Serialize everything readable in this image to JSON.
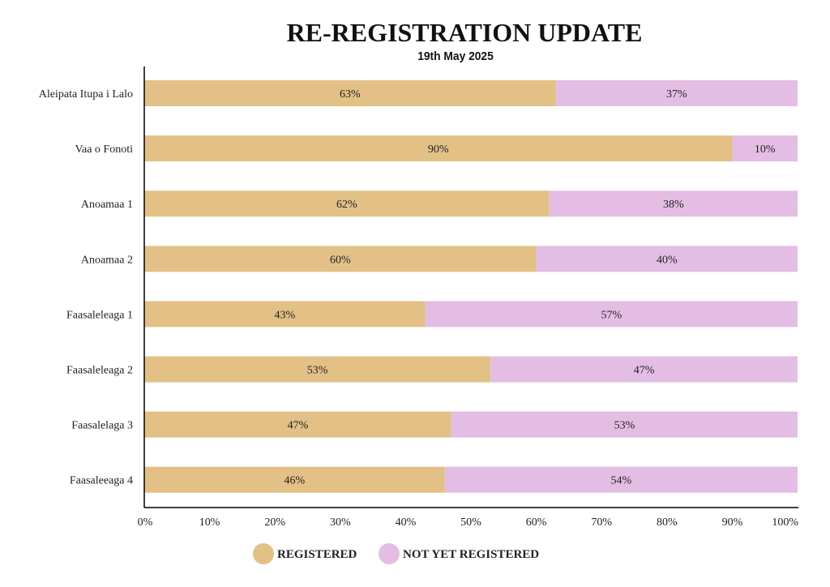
{
  "chart_data": {
    "type": "bar",
    "orientation": "horizontal",
    "stacked": true,
    "title": "RE-REGISTRATION UPDATE",
    "subtitle": "19th May 2025",
    "categories": [
      "Aleipata Itupa i Lalo",
      "Vaa o Fonoti",
      "Anoamaa 1",
      "Anoamaa 2",
      "Faasaleleaga 1",
      "Faasaleleaga 2",
      "Faasalelaga 3",
      "Faasaleeaga 4"
    ],
    "series": [
      {
        "name": "REGISTERED",
        "color": "#e2c086",
        "values": [
          63,
          90,
          62,
          60,
          43,
          53,
          47,
          46
        ],
        "labels": [
          "63%",
          "90%",
          "62%",
          "60%",
          "43%",
          "53%",
          "47%",
          "46%"
        ]
      },
      {
        "name": "NOT YET REGISTERED",
        "color": "#e3bde4",
        "values": [
          37,
          10,
          38,
          40,
          57,
          47,
          53,
          54
        ],
        "labels": [
          "37%",
          "10%",
          "38%",
          "40%",
          "57%",
          "47%",
          "53%",
          "54%"
        ]
      }
    ],
    "xlim": [
      0,
      100
    ],
    "xticks": [
      "0%",
      "10%",
      "20%",
      "30%",
      "40%",
      "50%",
      "60%",
      "70%",
      "80%",
      "90%",
      "100%"
    ],
    "grid": false,
    "legend": "bottom-center"
  }
}
